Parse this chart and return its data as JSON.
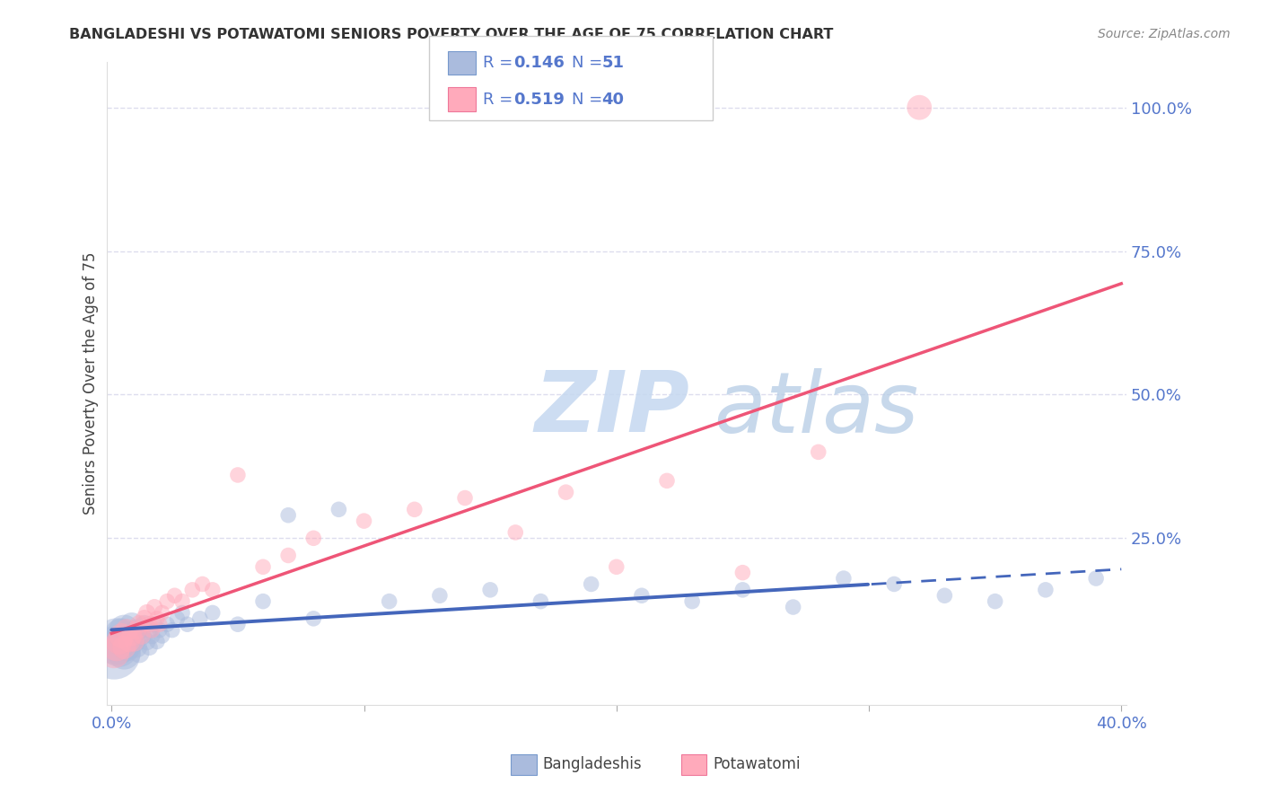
{
  "title": "BANGLADESHI VS POTAWATOMI SENIORS POVERTY OVER THE AGE OF 75 CORRELATION CHART",
  "source": "Source: ZipAtlas.com",
  "ylabel": "Seniors Poverty Over the Age of 75",
  "xlim": [
    -0.002,
    0.402
  ],
  "ylim": [
    -0.04,
    1.08
  ],
  "xticks": [
    0.0,
    0.4
  ],
  "xtick_labels": [
    "0.0%",
    "40.0%"
  ],
  "ytick_positions": [
    0.25,
    0.5,
    0.75,
    1.0
  ],
  "ytick_labels": [
    "25.0%",
    "50.0%",
    "75.0%",
    "100.0%"
  ],
  "blue_fill": "#AABBDD",
  "blue_edge": "#7799CC",
  "pink_fill": "#FFAABB",
  "pink_edge": "#EE7799",
  "trend_blue": "#4466BB",
  "trend_pink": "#EE5577",
  "grid_color": "#DDDDEE",
  "text_blue": "#5577CC",
  "watermark_zip": "#C8D8F0",
  "watermark_atlas": "#B0C8E8",
  "bangladeshi_x": [
    0.001,
    0.002,
    0.003,
    0.004,
    0.005,
    0.005,
    0.006,
    0.007,
    0.008,
    0.008,
    0.009,
    0.01,
    0.01,
    0.011,
    0.012,
    0.013,
    0.014,
    0.015,
    0.015,
    0.016,
    0.017,
    0.018,
    0.019,
    0.02,
    0.022,
    0.024,
    0.026,
    0.028,
    0.03,
    0.035,
    0.04,
    0.05,
    0.06,
    0.07,
    0.08,
    0.09,
    0.11,
    0.13,
    0.15,
    0.17,
    0.19,
    0.21,
    0.23,
    0.25,
    0.27,
    0.29,
    0.31,
    0.33,
    0.35,
    0.37,
    0.39
  ],
  "bangladeshi_y": [
    0.05,
    0.07,
    0.06,
    0.08,
    0.05,
    0.09,
    0.06,
    0.07,
    0.08,
    0.1,
    0.07,
    0.09,
    0.06,
    0.05,
    0.08,
    0.1,
    0.07,
    0.09,
    0.06,
    0.08,
    0.1,
    0.07,
    0.09,
    0.08,
    0.1,
    0.09,
    0.11,
    0.12,
    0.1,
    0.11,
    0.12,
    0.1,
    0.14,
    0.29,
    0.11,
    0.3,
    0.14,
    0.15,
    0.16,
    0.14,
    0.17,
    0.15,
    0.14,
    0.16,
    0.13,
    0.18,
    0.17,
    0.15,
    0.14,
    0.16,
    0.18
  ],
  "bangladeshi_size": [
    900,
    700,
    500,
    400,
    350,
    300,
    250,
    220,
    200,
    180,
    160,
    150,
    140,
    130,
    120,
    110,
    100,
    100,
    90,
    90,
    85,
    80,
    80,
    80,
    80,
    80,
    80,
    80,
    80,
    80,
    80,
    80,
    80,
    80,
    80,
    80,
    80,
    80,
    80,
    80,
    80,
    80,
    80,
    80,
    80,
    80,
    80,
    80,
    80,
    80,
    80
  ],
  "potawatomi_x": [
    0.001,
    0.002,
    0.003,
    0.004,
    0.005,
    0.006,
    0.007,
    0.008,
    0.009,
    0.01,
    0.011,
    0.012,
    0.013,
    0.014,
    0.015,
    0.016,
    0.017,
    0.018,
    0.019,
    0.02,
    0.022,
    0.025,
    0.028,
    0.032,
    0.036,
    0.04,
    0.05,
    0.06,
    0.07,
    0.08,
    0.1,
    0.12,
    0.14,
    0.16,
    0.18,
    0.2,
    0.22,
    0.25,
    0.28,
    0.32
  ],
  "potawatomi_y": [
    0.05,
    0.06,
    0.07,
    0.08,
    0.06,
    0.09,
    0.07,
    0.08,
    0.07,
    0.09,
    0.1,
    0.08,
    0.11,
    0.12,
    0.1,
    0.09,
    0.13,
    0.11,
    0.1,
    0.12,
    0.14,
    0.15,
    0.14,
    0.16,
    0.17,
    0.16,
    0.36,
    0.2,
    0.22,
    0.25,
    0.28,
    0.3,
    0.32,
    0.26,
    0.33,
    0.2,
    0.35,
    0.19,
    0.4,
    1.0
  ],
  "potawatomi_size": [
    300,
    250,
    220,
    200,
    180,
    160,
    150,
    140,
    130,
    120,
    110,
    100,
    100,
    95,
    90,
    85,
    85,
    80,
    80,
    80,
    80,
    80,
    80,
    80,
    80,
    80,
    80,
    80,
    80,
    80,
    80,
    80,
    80,
    80,
    80,
    80,
    80,
    80,
    80,
    200
  ]
}
